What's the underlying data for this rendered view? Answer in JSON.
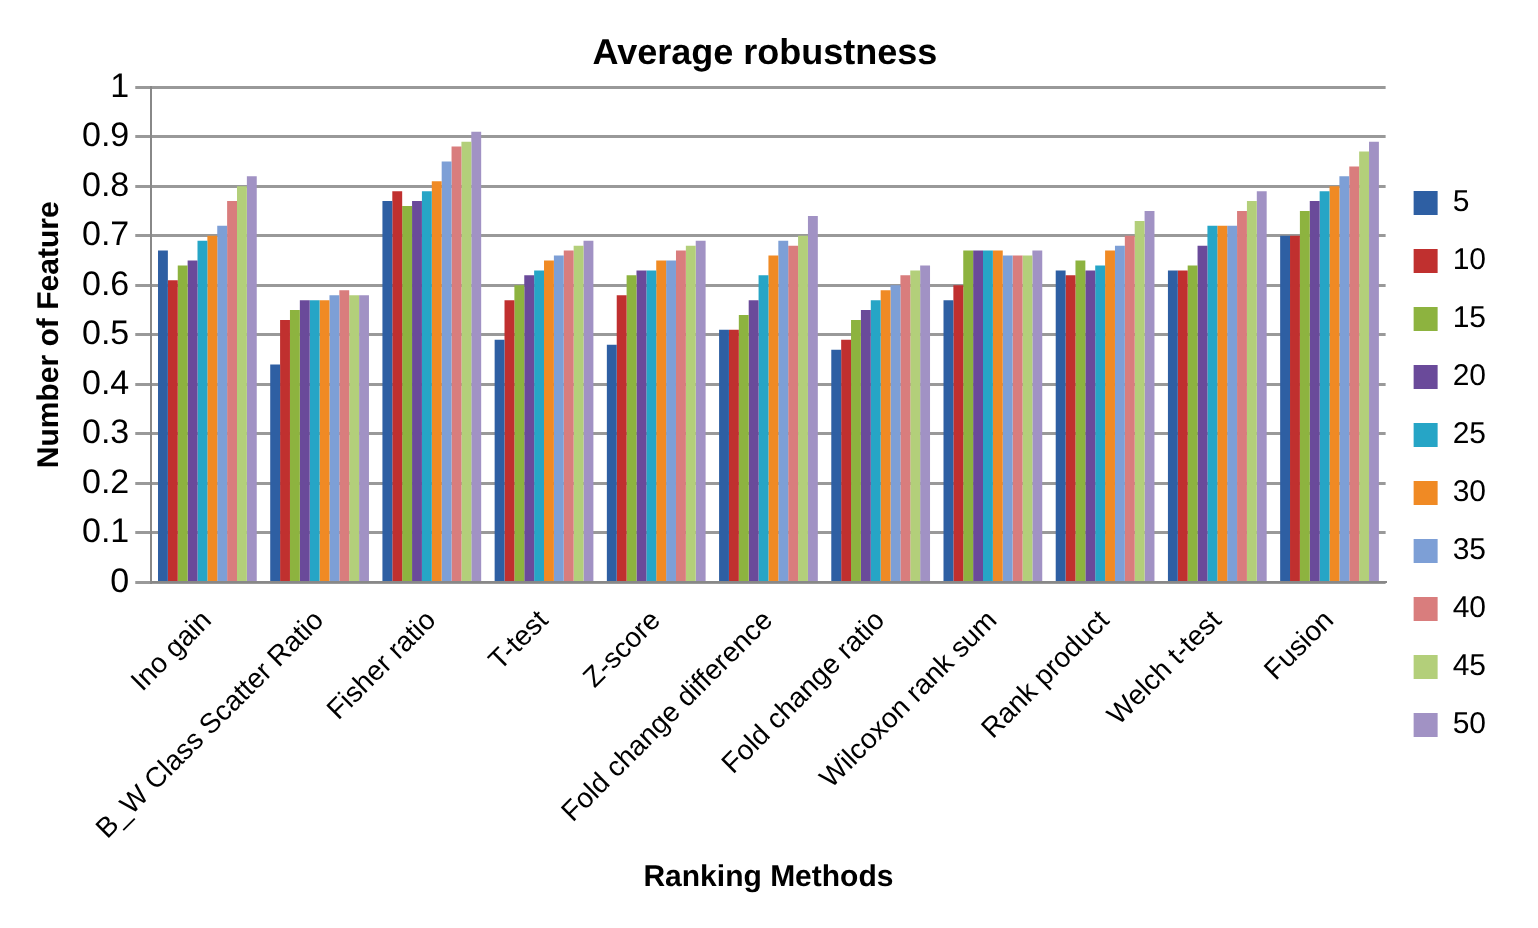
{
  "chart_data": {
    "type": "bar",
    "title": "Average robustness",
    "xlabel": "Ranking Methods",
    "ylabel": "Number of Feature",
    "categories": [
      "Ino gain",
      "B_W Class Scatter Ratio",
      "Fisher ratio",
      "T-test",
      "Z-score",
      "Fold change difference",
      "Fold change ratio",
      "Wilcoxon rank sum",
      "Rank product",
      "Welch t-test",
      "Fusion"
    ],
    "series": [
      {
        "name": "5",
        "color": "#2e5fa3",
        "values": [
          0.67,
          0.44,
          0.77,
          0.49,
          0.48,
          0.51,
          0.47,
          0.57,
          0.63,
          0.63,
          0.7
        ]
      },
      {
        "name": "10",
        "color": "#c0302f",
        "values": [
          0.61,
          0.53,
          0.79,
          0.57,
          0.58,
          0.51,
          0.49,
          0.6,
          0.62,
          0.63,
          0.7
        ]
      },
      {
        "name": "15",
        "color": "#8db33f",
        "values": [
          0.64,
          0.55,
          0.76,
          0.6,
          0.62,
          0.54,
          0.53,
          0.67,
          0.65,
          0.64,
          0.75
        ]
      },
      {
        "name": "20",
        "color": "#6a4a9a",
        "values": [
          0.65,
          0.57,
          0.77,
          0.62,
          0.63,
          0.57,
          0.55,
          0.67,
          0.63,
          0.68,
          0.77
        ]
      },
      {
        "name": "25",
        "color": "#26a5c6",
        "values": [
          0.69,
          0.57,
          0.79,
          0.63,
          0.63,
          0.62,
          0.57,
          0.67,
          0.64,
          0.72,
          0.79
        ]
      },
      {
        "name": "30",
        "color": "#f08a24",
        "values": [
          0.7,
          0.57,
          0.81,
          0.65,
          0.65,
          0.66,
          0.59,
          0.67,
          0.67,
          0.72,
          0.8
        ]
      },
      {
        "name": "35",
        "color": "#7d9fd6",
        "values": [
          0.72,
          0.58,
          0.85,
          0.66,
          0.65,
          0.69,
          0.6,
          0.66,
          0.68,
          0.72,
          0.82
        ]
      },
      {
        "name": "40",
        "color": "#d97d7d",
        "values": [
          0.77,
          0.59,
          0.88,
          0.67,
          0.67,
          0.68,
          0.62,
          0.66,
          0.7,
          0.75,
          0.84
        ]
      },
      {
        "name": "45",
        "color": "#b3cf7a",
        "values": [
          0.8,
          0.58,
          0.89,
          0.68,
          0.68,
          0.7,
          0.63,
          0.66,
          0.73,
          0.77,
          0.87
        ]
      },
      {
        "name": "50",
        "color": "#a192c4",
        "values": [
          0.82,
          0.58,
          0.91,
          0.69,
          0.69,
          0.74,
          0.64,
          0.67,
          0.75,
          0.79,
          0.89
        ]
      }
    ],
    "ylim": [
      0,
      1
    ],
    "yticks": [
      0,
      0.1,
      0.2,
      0.3,
      0.4,
      0.5,
      0.6,
      0.7,
      0.8,
      0.9,
      1
    ],
    "grid": "y",
    "legend": "right"
  }
}
